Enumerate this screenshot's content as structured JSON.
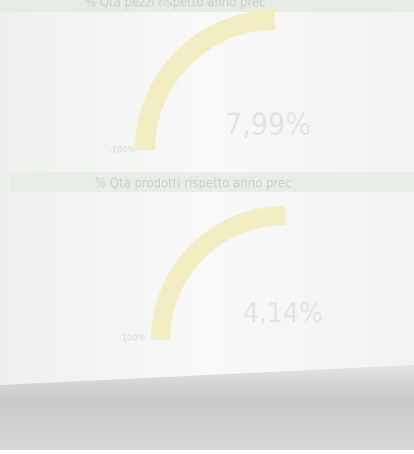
{
  "panels": [
    {
      "header": "% Qtà pezzi rispetto anno prec",
      "value": "7,99%",
      "min_label": "-100%"
    },
    {
      "header": "% Qtà prodotti rispetto anno prec",
      "value": "4,14%",
      "min_label": "-100%"
    }
  ]
}
